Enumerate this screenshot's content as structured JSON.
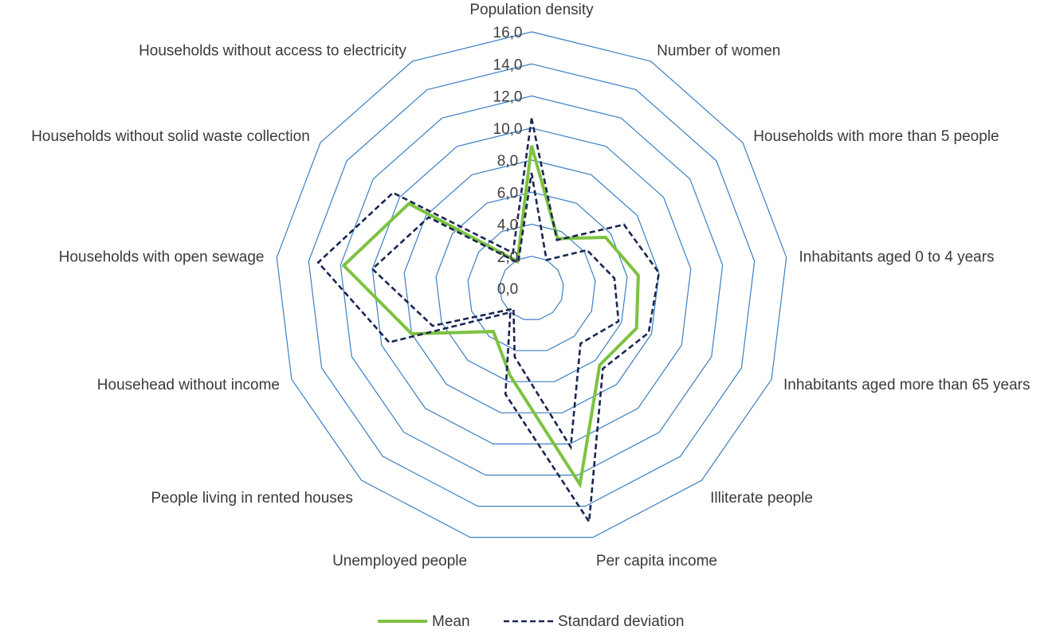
{
  "chart_data": {
    "type": "radar",
    "title": "",
    "categories": [
      "Population density",
      "Number of women",
      "Households with more than 5 people",
      "Inhabitants aged 0 to 4 years",
      "Inhabitants aged more than 65 years",
      "Illiterate people",
      "Per capita income",
      "Unemployed people",
      "People living in rented houses",
      "Househead without income",
      "Households with open sewage",
      "Households without solid waste collection",
      "Households without access to electricity"
    ],
    "tick_labels": [
      "0,0",
      "2,0",
      "4,0",
      "6,0",
      "8,0",
      "10,0",
      "12,0",
      "14,0",
      "16,0"
    ],
    "rmax": 16,
    "grid_step": 2,
    "series": [
      {
        "name": "Mean",
        "color": "#7dc241",
        "style": "solid",
        "values": [
          8.9,
          3.5,
          5.6,
          6.7,
          7.0,
          6.4,
          12.6,
          5.6,
          3.6,
          8.0,
          11.8,
          9.3,
          1.9
        ]
      },
      {
        "name": "Standard deviation",
        "color": "#1a2652",
        "style": "dashed",
        "values": [
          10.6,
          3.4,
          7.0,
          8.0,
          7.8,
          6.7,
          15.0,
          6.8,
          2.0,
          9.5,
          13.4,
          10.5,
          2.5
        ]
      },
      {
        "name": "",
        "color": "#1a2652",
        "style": "dashed",
        "values": [
          7.2,
          2.0,
          4.2,
          5.2,
          5.8,
          4.6,
          10.2,
          4.4,
          1.7,
          6.6,
          10.0,
          7.8,
          1.8
        ]
      }
    ],
    "legend_position": "bottom",
    "grid": true
  }
}
